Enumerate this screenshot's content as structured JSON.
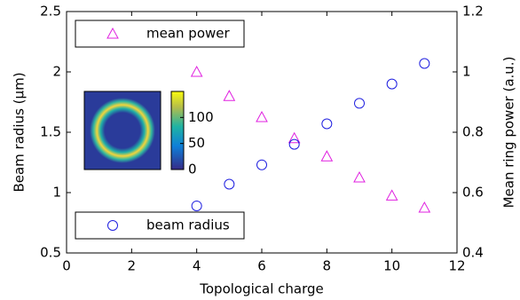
{
  "chart_data": {
    "type": "scatter",
    "x_label": "Topological charge",
    "y_label": "Beam radius (µm)",
    "y2_label": "Mean ring power (a.u.)",
    "xlim": [
      0,
      12
    ],
    "xticks": [
      0,
      2,
      4,
      6,
      8,
      10,
      12
    ],
    "ylim": [
      0.5,
      2.5
    ],
    "yticks": [
      0.5,
      1,
      1.5,
      2,
      2.5
    ],
    "y2lim": [
      0.4,
      1.2
    ],
    "y2ticks": [
      0.4,
      0.6,
      0.8,
      1,
      1.2
    ],
    "series": [
      {
        "name": "mean power",
        "color": "#e020e0",
        "marker": "triangle",
        "axis": "y2",
        "legend": "upper left",
        "x": [
          4,
          5,
          6,
          7,
          8,
          9,
          10,
          11
        ],
        "values": [
          1.0,
          0.92,
          0.85,
          0.78,
          0.72,
          0.65,
          0.59,
          0.55
        ]
      },
      {
        "name": "beam radius",
        "color": "#2020e0",
        "marker": "circle",
        "axis": "y",
        "legend": "lower left",
        "x": [
          4,
          5,
          6,
          7,
          8,
          9,
          10,
          11
        ],
        "values": [
          0.89,
          1.07,
          1.23,
          1.4,
          1.57,
          1.74,
          1.9,
          2.07
        ]
      }
    ],
    "inset": {
      "colorbar_lim": [
        0,
        150
      ],
      "colorbar_ticks": [
        0,
        50,
        100
      ]
    }
  }
}
